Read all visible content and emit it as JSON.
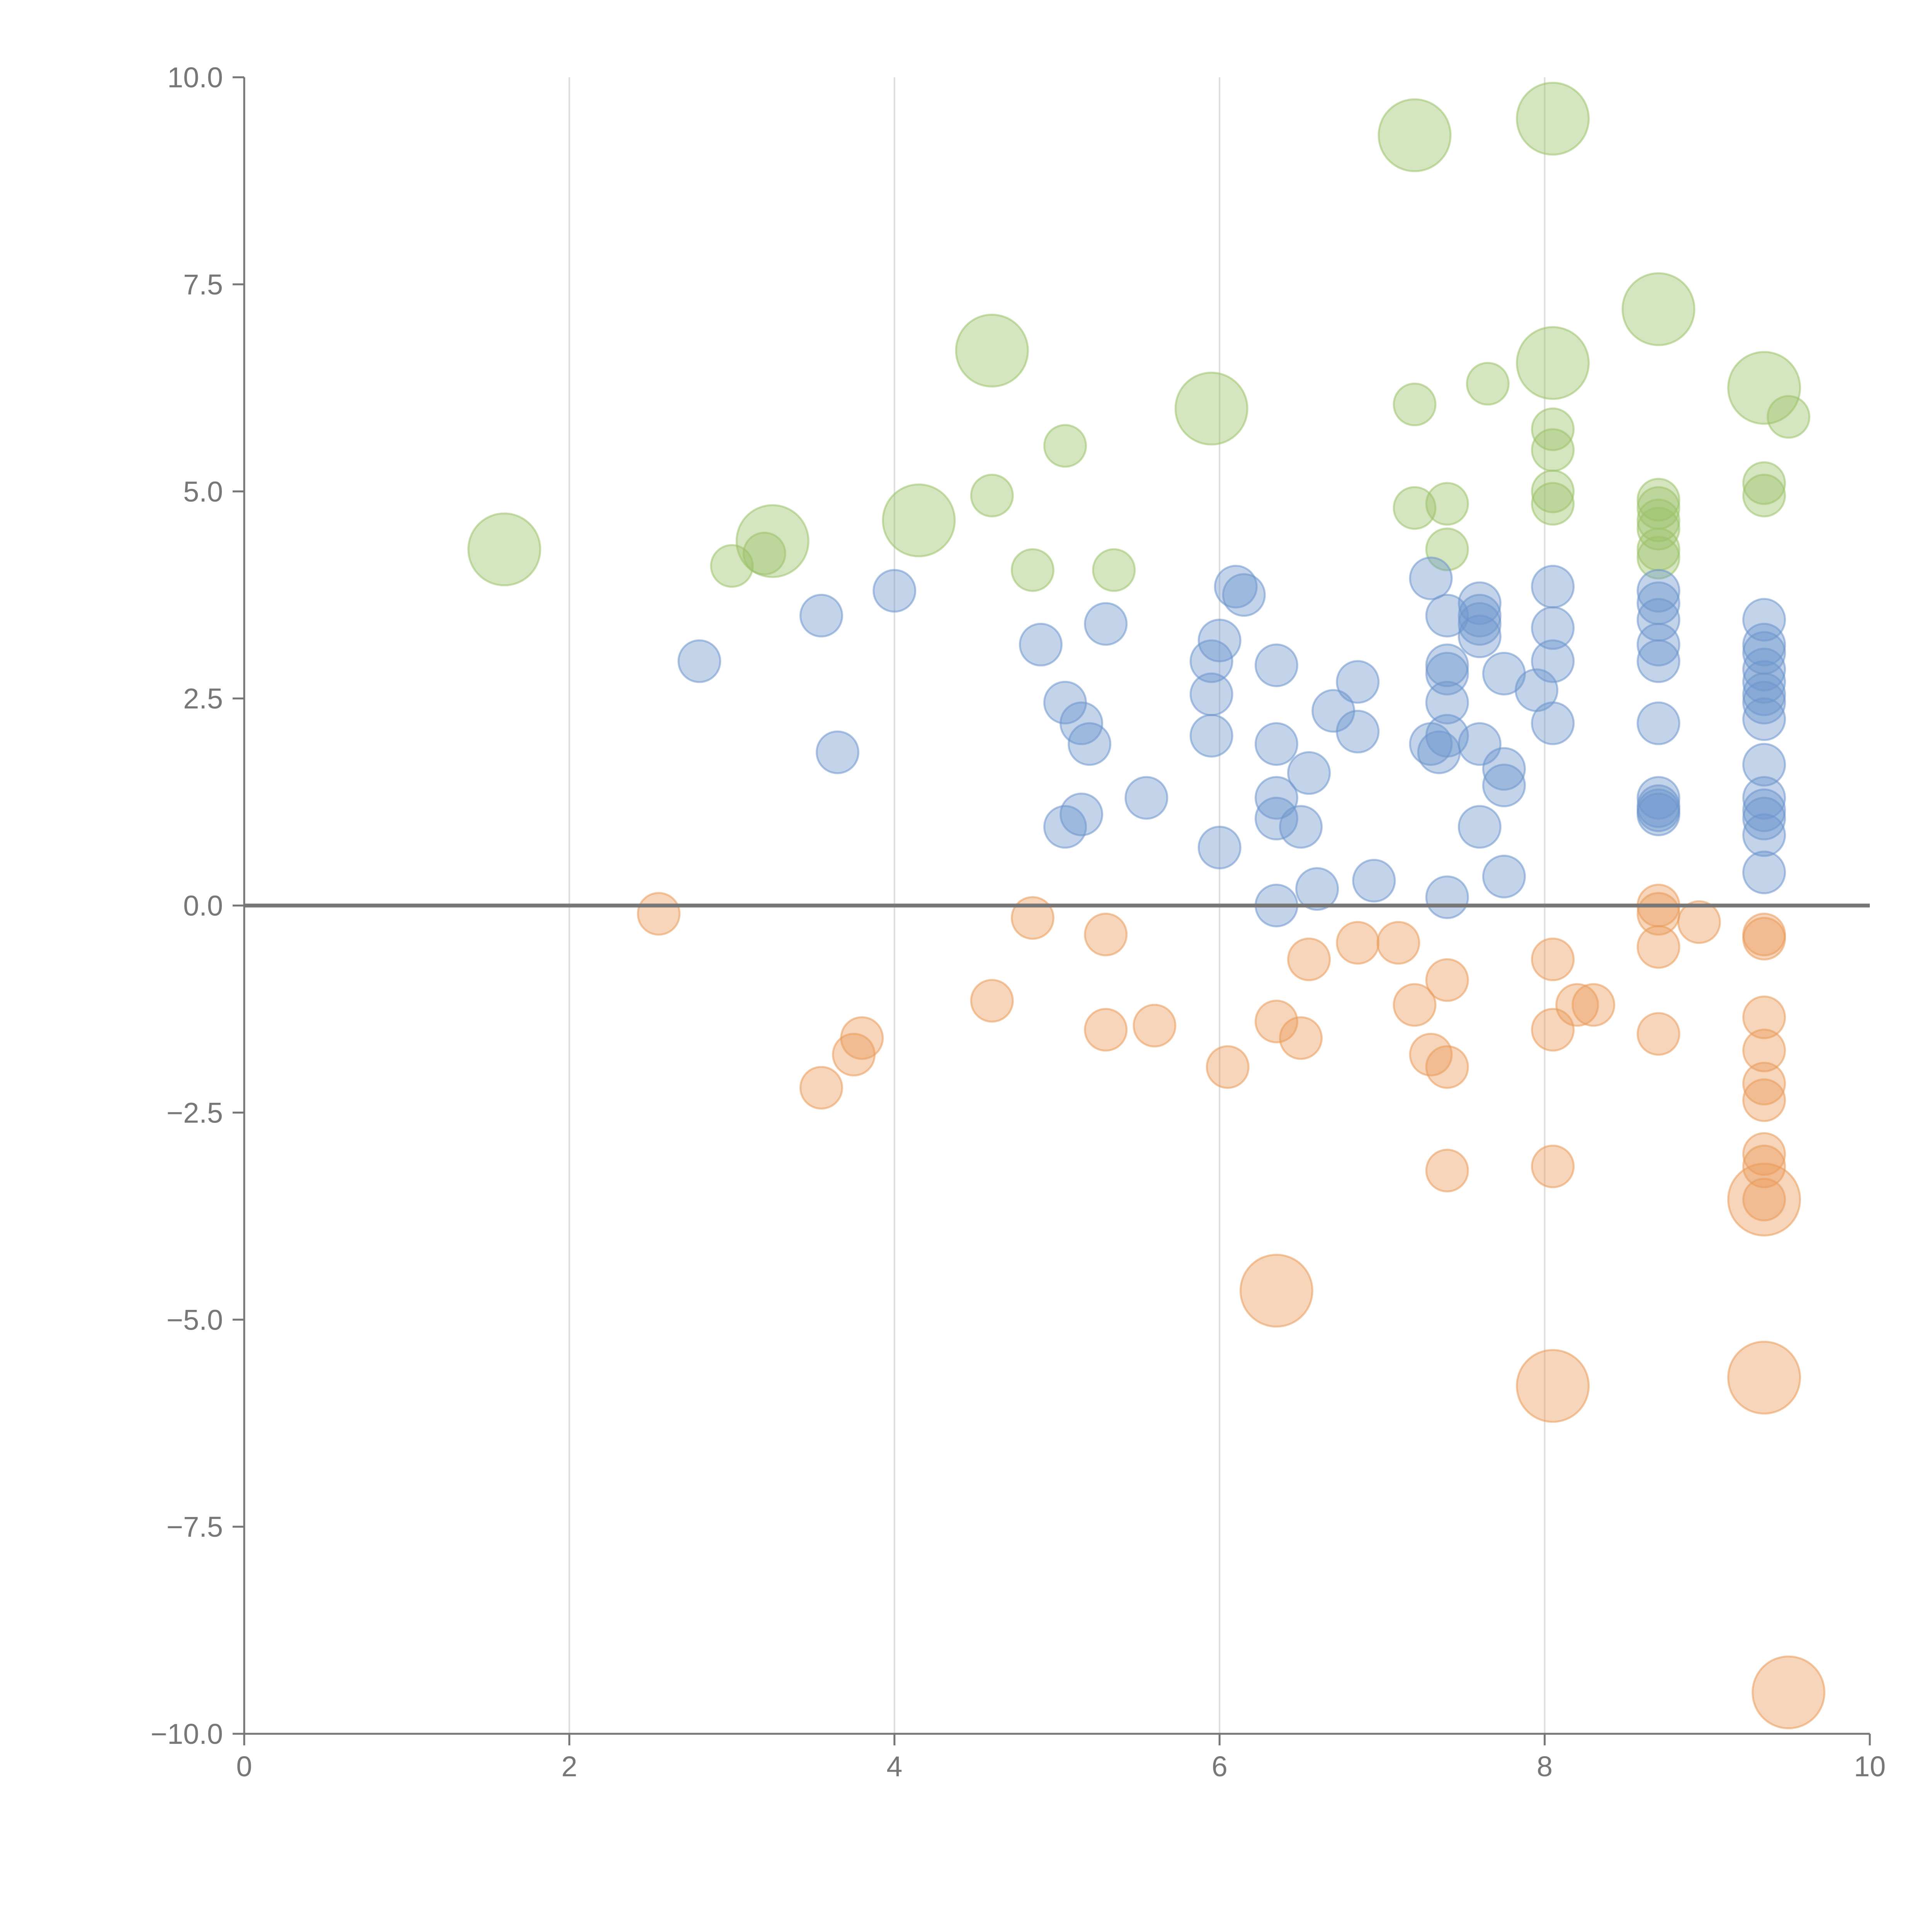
{
  "chart_data": {
    "type": "scatter",
    "title": "",
    "xlabel": "",
    "ylabel": "",
    "xlim": [
      0,
      10
    ],
    "ylim": [
      -10,
      10
    ],
    "x_ticks": [
      0,
      2,
      4,
      6,
      8,
      10
    ],
    "x_tick_labels": [
      "0",
      "2",
      "4",
      "6",
      "8",
      "10"
    ],
    "y_ticks": [
      10,
      7.5,
      5,
      2.5,
      0,
      -2.5,
      -5,
      -7.5,
      -10
    ],
    "y_tick_labels": [
      "10.0",
      "7.5",
      "5.0",
      "2.5",
      "0.0",
      "−2.5",
      "−5.0",
      "−7.5",
      "−10.0"
    ],
    "vertical_grid": true,
    "zero_line": true,
    "legend": "none",
    "series": [
      {
        "name": "green",
        "color": "#9cc26a",
        "points": [
          [
            1.6,
            4.3,
            3
          ],
          [
            3.0,
            4.1,
            1
          ],
          [
            3.2,
            4.25,
            1
          ],
          [
            3.25,
            4.4,
            3
          ],
          [
            4.15,
            4.65,
            3
          ],
          [
            4.6,
            6.7,
            3
          ],
          [
            4.6,
            4.95,
            1
          ],
          [
            4.85,
            4.05,
            1
          ],
          [
            5.05,
            5.55,
            1
          ],
          [
            5.35,
            4.05,
            1
          ],
          [
            5.95,
            6.0,
            3
          ],
          [
            7.2,
            9.3,
            3
          ],
          [
            7.2,
            6.05,
            1
          ],
          [
            7.2,
            4.8,
            1
          ],
          [
            7.4,
            4.85,
            1
          ],
          [
            7.4,
            4.3,
            1
          ],
          [
            7.65,
            6.3,
            1
          ],
          [
            8.05,
            9.5,
            3
          ],
          [
            8.05,
            6.55,
            3
          ],
          [
            8.05,
            5.75,
            1
          ],
          [
            8.05,
            5.5,
            1
          ],
          [
            8.05,
            5.0,
            1
          ],
          [
            8.05,
            4.85,
            1
          ],
          [
            8.7,
            7.2,
            3
          ],
          [
            8.7,
            4.9,
            1
          ],
          [
            8.7,
            4.8,
            1
          ],
          [
            8.7,
            4.65,
            1
          ],
          [
            8.7,
            4.55,
            1
          ],
          [
            8.7,
            4.3,
            1
          ],
          [
            8.7,
            4.2,
            1
          ],
          [
            9.35,
            6.25,
            3
          ],
          [
            9.5,
            5.9,
            1
          ],
          [
            9.35,
            5.1,
            1
          ],
          [
            9.35,
            4.95,
            1
          ]
        ]
      },
      {
        "name": "blue",
        "color": "#6d95cc",
        "points": [
          [
            2.8,
            2.95,
            1
          ],
          [
            3.55,
            3.5,
            1
          ],
          [
            3.65,
            1.85,
            1
          ],
          [
            4.0,
            3.8,
            1
          ],
          [
            4.9,
            3.15,
            1
          ],
          [
            5.05,
            2.45,
            1
          ],
          [
            5.15,
            2.2,
            1
          ],
          [
            5.2,
            1.95,
            1
          ],
          [
            5.05,
            0.95,
            1
          ],
          [
            5.15,
            1.1,
            1
          ],
          [
            5.3,
            3.4,
            1
          ],
          [
            5.55,
            1.3,
            1
          ],
          [
            5.95,
            2.95,
            1
          ],
          [
            5.95,
            2.55,
            1
          ],
          [
            5.95,
            2.05,
            1
          ],
          [
            6.0,
            3.2,
            1
          ],
          [
            6.0,
            0.7,
            1
          ],
          [
            6.1,
            3.85,
            1
          ],
          [
            6.15,
            3.75,
            1
          ],
          [
            6.35,
            2.9,
            1
          ],
          [
            6.35,
            1.95,
            1
          ],
          [
            6.35,
            1.3,
            1
          ],
          [
            6.35,
            1.05,
            1
          ],
          [
            6.35,
            0.0,
            1
          ],
          [
            6.5,
            0.95,
            1
          ],
          [
            6.55,
            1.6,
            1
          ],
          [
            6.6,
            0.2,
            1
          ],
          [
            6.7,
            2.35,
            1
          ],
          [
            6.85,
            2.7,
            1
          ],
          [
            6.85,
            2.1,
            1
          ],
          [
            6.95,
            0.3,
            1
          ],
          [
            7.3,
            3.95,
            1
          ],
          [
            7.3,
            1.95,
            1
          ],
          [
            7.35,
            1.85,
            1
          ],
          [
            7.4,
            3.5,
            1
          ],
          [
            7.4,
            2.9,
            1
          ],
          [
            7.4,
            2.8,
            1
          ],
          [
            7.4,
            2.45,
            1
          ],
          [
            7.4,
            2.05,
            1
          ],
          [
            7.4,
            0.1,
            1
          ],
          [
            7.6,
            3.65,
            1
          ],
          [
            7.6,
            3.5,
            1
          ],
          [
            7.6,
            3.4,
            1
          ],
          [
            7.6,
            3.25,
            1
          ],
          [
            7.6,
            1.95,
            1
          ],
          [
            7.6,
            0.95,
            1
          ],
          [
            7.75,
            2.8,
            1
          ],
          [
            7.75,
            1.65,
            1
          ],
          [
            7.75,
            1.45,
            1
          ],
          [
            7.75,
            0.35,
            1
          ],
          [
            7.95,
            2.6,
            1
          ],
          [
            8.05,
            3.85,
            1
          ],
          [
            8.05,
            3.35,
            1
          ],
          [
            8.05,
            2.95,
            1
          ],
          [
            8.05,
            2.2,
            1
          ],
          [
            8.7,
            3.8,
            1
          ],
          [
            8.7,
            3.65,
            1
          ],
          [
            8.7,
            3.45,
            1
          ],
          [
            8.7,
            3.15,
            1
          ],
          [
            8.7,
            2.95,
            1
          ],
          [
            8.7,
            2.2,
            1
          ],
          [
            8.7,
            1.3,
            1
          ],
          [
            8.7,
            1.2,
            1
          ],
          [
            8.7,
            1.15,
            1
          ],
          [
            8.7,
            1.1,
            1
          ],
          [
            9.35,
            3.45,
            1
          ],
          [
            9.35,
            3.15,
            1
          ],
          [
            9.35,
            3.05,
            1
          ],
          [
            9.35,
            2.85,
            1
          ],
          [
            9.35,
            2.7,
            1
          ],
          [
            9.35,
            2.55,
            1
          ],
          [
            9.35,
            2.45,
            1
          ],
          [
            9.35,
            2.25,
            1
          ],
          [
            9.35,
            1.7,
            1
          ],
          [
            9.35,
            1.3,
            1
          ],
          [
            9.35,
            1.15,
            1
          ],
          [
            9.35,
            1.05,
            1
          ],
          [
            9.35,
            0.85,
            1
          ],
          [
            9.35,
            0.4,
            1
          ]
        ]
      },
      {
        "name": "orange",
        "color": "#ea9b5a",
        "points": [
          [
            2.55,
            -0.1,
            1
          ],
          [
            3.55,
            -2.2,
            1
          ],
          [
            3.75,
            -1.8,
            1
          ],
          [
            3.8,
            -1.6,
            1
          ],
          [
            4.6,
            -1.15,
            1
          ],
          [
            4.85,
            -0.15,
            1
          ],
          [
            5.3,
            -0.35,
            1
          ],
          [
            5.3,
            -1.5,
            1
          ],
          [
            5.6,
            -1.45,
            1
          ],
          [
            6.05,
            -1.95,
            1
          ],
          [
            6.35,
            -1.4,
            1
          ],
          [
            6.35,
            -4.65,
            3
          ],
          [
            6.5,
            -1.6,
            1
          ],
          [
            6.55,
            -0.65,
            1
          ],
          [
            6.85,
            -0.45,
            1
          ],
          [
            7.1,
            -0.45,
            1
          ],
          [
            7.2,
            -1.2,
            1
          ],
          [
            7.3,
            -1.8,
            1
          ],
          [
            7.4,
            -0.9,
            1
          ],
          [
            7.4,
            -1.95,
            1
          ],
          [
            7.4,
            -3.2,
            1
          ],
          [
            8.05,
            -0.65,
            1
          ],
          [
            8.05,
            -1.5,
            1
          ],
          [
            8.05,
            -3.15,
            1
          ],
          [
            8.05,
            -5.8,
            3
          ],
          [
            8.2,
            -1.2,
            1
          ],
          [
            8.3,
            -1.2,
            1
          ],
          [
            8.7,
            0.0,
            1
          ],
          [
            8.7,
            -0.1,
            1
          ],
          [
            8.7,
            -0.5,
            1
          ],
          [
            8.7,
            -1.55,
            1
          ],
          [
            8.95,
            -0.2,
            1
          ],
          [
            9.35,
            -0.35,
            1
          ],
          [
            9.35,
            -0.4,
            1
          ],
          [
            9.35,
            -1.35,
            1
          ],
          [
            9.35,
            -1.75,
            1
          ],
          [
            9.35,
            -2.15,
            1
          ],
          [
            9.35,
            -2.35,
            1
          ],
          [
            9.35,
            -3.0,
            1
          ],
          [
            9.35,
            -3.15,
            1
          ],
          [
            9.35,
            -3.55,
            3
          ],
          [
            9.35,
            -3.55,
            1
          ],
          [
            9.35,
            -5.7,
            3
          ],
          [
            9.5,
            -9.5,
            3
          ]
        ]
      }
    ]
  }
}
